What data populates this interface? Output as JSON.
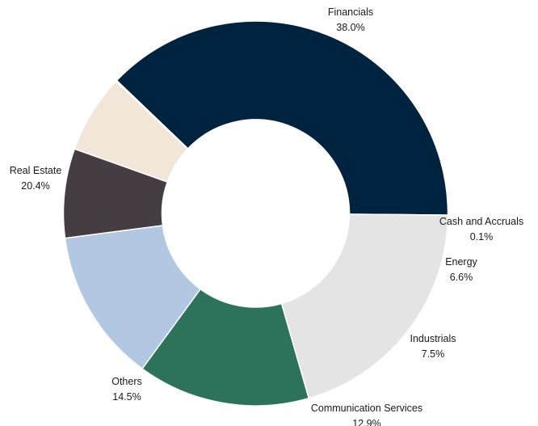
{
  "chart_data": {
    "type": "pie",
    "variant": "donut",
    "slices": [
      {
        "label": "Financials",
        "value": 38.0,
        "value_label": "38.0%",
        "color": "#00233f"
      },
      {
        "label": "Cash and Accruals",
        "value": 0.1,
        "value_label": "0.1%",
        "color": "#f1e6d8"
      },
      {
        "label": "Energy",
        "value": 6.6,
        "value_label": "6.6%",
        "color": "#f1e6d8"
      },
      {
        "label": "Industrials",
        "value": 7.5,
        "value_label": "7.5%",
        "color": "#463d42"
      },
      {
        "label": "Communication Services",
        "value": 12.9,
        "value_label": "12.9%",
        "color": "#b2c7e1"
      },
      {
        "label": "Others",
        "value": 14.5,
        "value_label": "14.5%",
        "color": "#2d735b"
      },
      {
        "label": "Real Estate",
        "value": 20.4,
        "value_label": "20.4%",
        "color": "#e4e4e4"
      }
    ]
  }
}
